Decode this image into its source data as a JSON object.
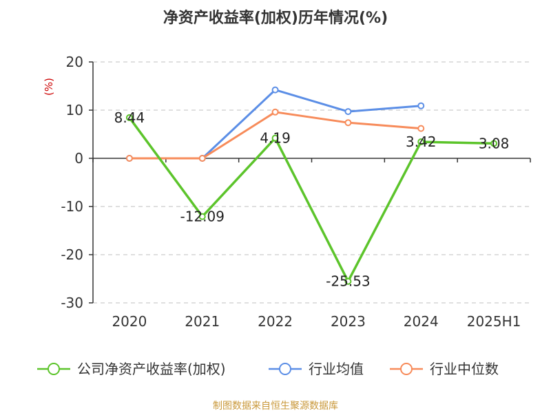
{
  "chart_data": {
    "type": "line",
    "title": "净资产收益率(加权)历年情况(%)",
    "ylabel": "(%)",
    "categories": [
      "2020",
      "2021",
      "2022",
      "2023",
      "2024",
      "2025H1"
    ],
    "ylim": [
      -30,
      20
    ],
    "yticks": [
      20,
      10,
      0,
      -10,
      -20,
      -30
    ],
    "grid": true,
    "legend_position": "bottom",
    "series": [
      {
        "name": "公司净资产收益率(加权)",
        "color": "#5cc42b",
        "values": [
          8.44,
          -12.09,
          4.19,
          -25.53,
          3.42,
          3.08
        ],
        "labels": [
          "8.44",
          "-12.09",
          "4.19",
          "-25.53",
          "3.42",
          "3.08"
        ]
      },
      {
        "name": "行业均值",
        "color": "#5b8ee6",
        "values": [
          0,
          0,
          14.2,
          9.7,
          10.9,
          null
        ]
      },
      {
        "name": "行业中位数",
        "color": "#f78b5a",
        "values": [
          0,
          0,
          9.6,
          7.4,
          6.2,
          null
        ]
      }
    ]
  },
  "source": "制图数据来自恒生聚源数据库"
}
